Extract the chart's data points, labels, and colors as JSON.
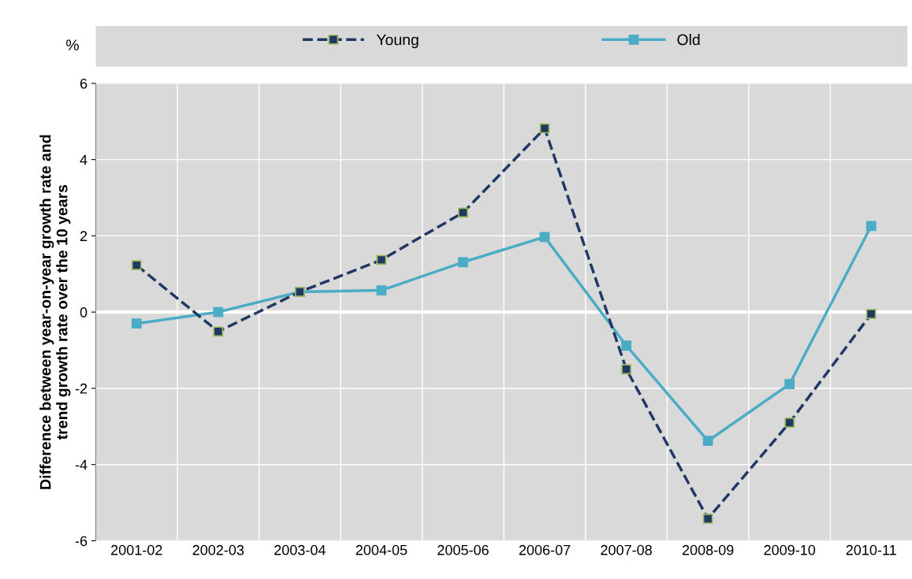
{
  "chart_data": {
    "type": "line",
    "ylabel": "Difference between year-on-year growth rate and\ntrend growth rate over the 10 years",
    "annotations": [
      "%"
    ],
    "categories": [
      "2001-02",
      "2002-03",
      "2003-04",
      "2004-05",
      "2005-06",
      "2006-07",
      "2007-08",
      "2008-09",
      "2009-10",
      "2010-11"
    ],
    "series": [
      {
        "name": "Young",
        "color": "#1f3864",
        "line_style": "dashed",
        "values": [
          1.23,
          -0.51,
          0.53,
          1.37,
          2.61,
          4.82,
          -1.5,
          -5.42,
          -2.9,
          -0.05
        ]
      },
      {
        "name": "Old",
        "color": "#4bacc6",
        "line_style": "solid",
        "values": [
          -0.3,
          0.0,
          0.53,
          0.57,
          1.31,
          1.97,
          -0.88,
          -3.38,
          -1.89,
          2.26
        ]
      }
    ],
    "ylim": [
      -6,
      6
    ],
    "yticks": [
      -6,
      -4,
      -2,
      0,
      2,
      4,
      6
    ],
    "grid": true,
    "legend": "top",
    "marker": "square"
  }
}
